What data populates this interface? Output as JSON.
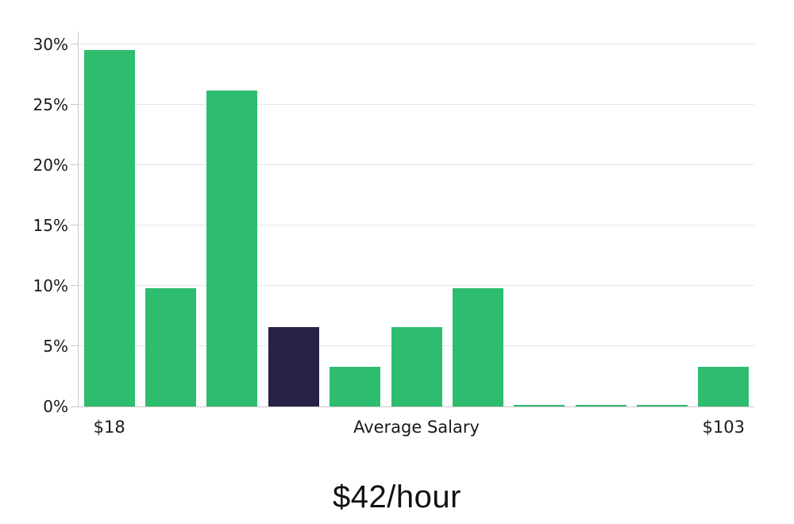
{
  "chart_data": {
    "type": "bar",
    "subtype": "salary-distribution-histogram",
    "title": "$42/hour",
    "values": [
      29.5,
      9.8,
      26.2,
      6.6,
      3.3,
      6.6,
      9.8,
      0.1,
      0.1,
      0.1,
      3.3
    ],
    "highlighted_bar_index": 3,
    "x_tick_labels": [
      {
        "text": "$18",
        "bar_index": 0
      },
      {
        "text": "Average Salary",
        "bar_index": 5
      },
      {
        "text": "$103",
        "bar_index": 10
      }
    ],
    "y_tick_labels": [
      "0%",
      "5%",
      "10%",
      "15%",
      "20%",
      "25%",
      "30%"
    ],
    "y_tick_values": [
      0,
      5,
      10,
      15,
      20,
      25,
      30
    ],
    "ylim": [
      0,
      31
    ],
    "grid": "horizontal-only",
    "legend": "none",
    "colors": {
      "bar_green": "#2ebd6e",
      "bar_highlight_navy": "#272347",
      "gridline": "#e7e7e7",
      "axis_spine": "#c9c9c9",
      "tick_mark": "#c9c9c9",
      "axis_text": "#1a1a1a",
      "title_text": "#111111",
      "background": "#ffffff"
    }
  }
}
